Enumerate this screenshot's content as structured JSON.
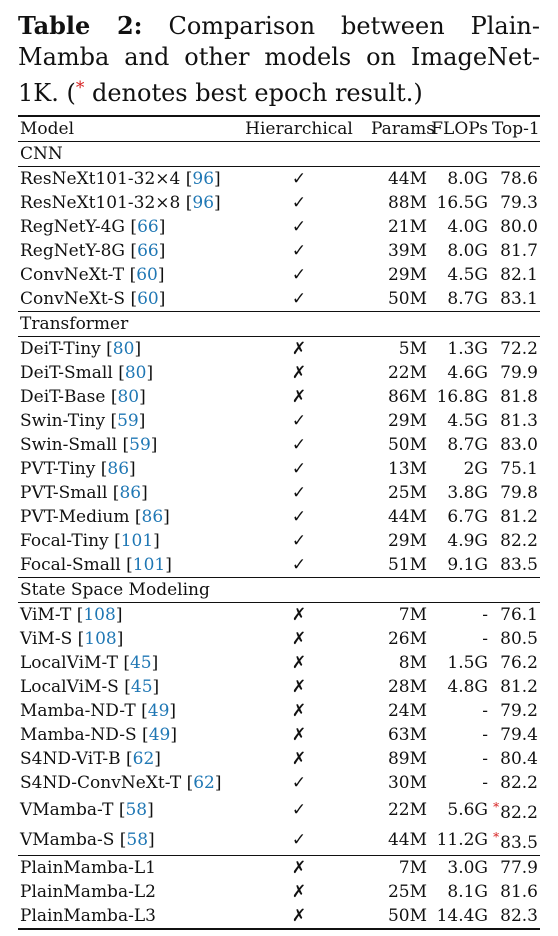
{
  "caption": {
    "label": "Table 2:",
    "text": "Comparison between Plain-Mamba and other models on ImageNet-1K.",
    "note_open": "(",
    "note_star": "*",
    "note_text": " denotes best epoch result.)"
  },
  "table": {
    "headers": {
      "model": "Model",
      "hierarchical": "Hierarchical",
      "params": "Params",
      "flops": "FLOPs",
      "top1": "Top-1"
    },
    "sections": [
      {
        "name": "CNN",
        "rows": [
          {
            "model": "ResNeXt101-32×4",
            "ref": "96",
            "hier": "✓",
            "params": "44M",
            "flops": "8.0G",
            "top1": "78.6",
            "best": false
          },
          {
            "model": "ResNeXt101-32×8",
            "ref": "96",
            "hier": "✓",
            "params": "88M",
            "flops": "16.5G",
            "top1": "79.3",
            "best": false
          },
          {
            "model": "RegNetY-4G",
            "ref": "66",
            "hier": "✓",
            "params": "21M",
            "flops": "4.0G",
            "top1": "80.0",
            "best": false
          },
          {
            "model": "RegNetY-8G",
            "ref": "66",
            "hier": "✓",
            "params": "39M",
            "flops": "8.0G",
            "top1": "81.7",
            "best": false
          },
          {
            "model": "ConvNeXt-T",
            "ref": "60",
            "hier": "✓",
            "params": "29M",
            "flops": "4.5G",
            "top1": "82.1",
            "best": false
          },
          {
            "model": "ConvNeXt-S",
            "ref": "60",
            "hier": "✓",
            "params": "50M",
            "flops": "8.7G",
            "top1": "83.1",
            "best": false
          }
        ]
      },
      {
        "name": "Transformer",
        "rows": [
          {
            "model": "DeiT-Tiny",
            "ref": "80",
            "hier": "✗",
            "params": "5M",
            "flops": "1.3G",
            "top1": "72.2",
            "best": false
          },
          {
            "model": "DeiT-Small",
            "ref": "80",
            "hier": "✗",
            "params": "22M",
            "flops": "4.6G",
            "top1": "79.9",
            "best": false
          },
          {
            "model": "DeiT-Base",
            "ref": "80",
            "hier": "✗",
            "params": "86M",
            "flops": "16.8G",
            "top1": "81.8",
            "best": false
          },
          {
            "model": "Swin-Tiny",
            "ref": "59",
            "hier": "✓",
            "params": "29M",
            "flops": "4.5G",
            "top1": "81.3",
            "best": false
          },
          {
            "model": "Swin-Small",
            "ref": "59",
            "hier": "✓",
            "params": "50M",
            "flops": "8.7G",
            "top1": "83.0",
            "best": false
          },
          {
            "model": "PVT-Tiny",
            "ref": "86",
            "hier": "✓",
            "params": "13M",
            "flops": "2G",
            "top1": "75.1",
            "best": false
          },
          {
            "model": "PVT-Small",
            "ref": "86",
            "hier": "✓",
            "params": "25M",
            "flops": "3.8G",
            "top1": "79.8",
            "best": false
          },
          {
            "model": "PVT-Medium",
            "ref": "86",
            "hier": "✓",
            "params": "44M",
            "flops": "6.7G",
            "top1": "81.2",
            "best": false
          },
          {
            "model": "Focal-Tiny",
            "ref": "101",
            "hier": "✓",
            "params": "29M",
            "flops": "4.9G",
            "top1": "82.2",
            "best": false
          },
          {
            "model": "Focal-Small",
            "ref": "101",
            "hier": "✓",
            "params": "51M",
            "flops": "9.1G",
            "top1": "83.5",
            "best": false
          }
        ]
      },
      {
        "name": "State Space Modeling",
        "rows": [
          {
            "model": "ViM-T",
            "ref": "108",
            "hier": "✗",
            "params": "7M",
            "flops": "-",
            "top1": "76.1",
            "best": false
          },
          {
            "model": "ViM-S",
            "ref": "108",
            "hier": "✗",
            "params": "26M",
            "flops": "-",
            "top1": "80.5",
            "best": false
          },
          {
            "model": "LocalViM-T",
            "ref": "45",
            "hier": "✗",
            "params": "8M",
            "flops": "1.5G",
            "top1": "76.2",
            "best": false
          },
          {
            "model": "LocalViM-S",
            "ref": "45",
            "hier": "✗",
            "params": "28M",
            "flops": "4.8G",
            "top1": "81.2",
            "best": false
          },
          {
            "model": "Mamba-ND-T",
            "ref": "49",
            "hier": "✗",
            "params": "24M",
            "flops": "-",
            "top1": "79.2",
            "best": false
          },
          {
            "model": "Mamba-ND-S",
            "ref": "49",
            "hier": "✗",
            "params": "63M",
            "flops": "-",
            "top1": "79.4",
            "best": false
          },
          {
            "model": "S4ND-ViT-B",
            "ref": "62",
            "hier": "✗",
            "params": "89M",
            "flops": "-",
            "top1": "80.4",
            "best": false
          },
          {
            "model": "S4ND-ConvNeXt-T",
            "ref": "62",
            "hier": "✓",
            "params": "30M",
            "flops": "-",
            "top1": "82.2",
            "best": false
          },
          {
            "model": "VMamba-T",
            "ref": "58",
            "hier": "✓",
            "params": "22M",
            "flops": "5.6G",
            "top1": "82.2",
            "best": true
          },
          {
            "model": "VMamba-S",
            "ref": "58",
            "hier": "✓",
            "params": "44M",
            "flops": "11.2G",
            "top1": "83.5",
            "best": true
          }
        ]
      },
      {
        "name": "",
        "rows": [
          {
            "model": "PlainMamba-L1",
            "ref": "",
            "hier": "✗",
            "params": "7M",
            "flops": "3.0G",
            "top1": "77.9",
            "best": false
          },
          {
            "model": "PlainMamba-L2",
            "ref": "",
            "hier": "✗",
            "params": "25M",
            "flops": "8.1G",
            "top1": "81.6",
            "best": false
          },
          {
            "model": "PlainMamba-L3",
            "ref": "",
            "hier": "✗",
            "params": "50M",
            "flops": "14.4G",
            "top1": "82.3",
            "best": false
          }
        ]
      }
    ]
  },
  "colors": {
    "citation": "#1f77b4",
    "best_marker": "#d61f1f",
    "text": "#111111"
  }
}
